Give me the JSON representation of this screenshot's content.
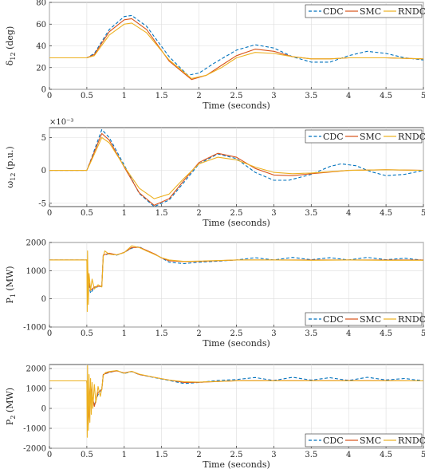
{
  "palette": {
    "CDC": "#0072bd",
    "SMC": "#d95319",
    "RNDC": "#edb120"
  },
  "chart_data": [
    {
      "id": "delta",
      "type": "line",
      "title": "",
      "xlabel": "Time (seconds)",
      "ylabel": "δ",
      "ylabel_sub": "12",
      "ylabel_unit": " (deg)",
      "xlim": [
        0,
        5
      ],
      "ylim": [
        0,
        80
      ],
      "xticks": [
        "0",
        "0.5",
        "1",
        "1.5",
        "2",
        "2.5",
        "3",
        "3.5",
        "4",
        "4.5",
        "5"
      ],
      "yticks": [
        "0",
        "20",
        "40",
        "60",
        "80"
      ],
      "exponent": "",
      "legend_position": "top-right",
      "legend": [
        "CDC",
        "SMC",
        "RNDC"
      ],
      "series": [
        {
          "name": "CDC",
          "x": [
            0,
            0.5,
            0.6,
            0.8,
            1.0,
            1.1,
            1.3,
            1.6,
            1.85,
            2.0,
            2.2,
            2.5,
            2.75,
            3.0,
            3.25,
            3.5,
            3.75,
            4.0,
            4.25,
            4.5,
            4.75,
            5.0
          ],
          "y": [
            29,
            29,
            33,
            55,
            67,
            68,
            58,
            30,
            13,
            15,
            24,
            36,
            41,
            38,
            30,
            25,
            25,
            31,
            35,
            33,
            29,
            27
          ]
        },
        {
          "name": "SMC",
          "x": [
            0,
            0.5,
            0.6,
            0.8,
            1.0,
            1.1,
            1.3,
            1.6,
            1.9,
            2.1,
            2.3,
            2.5,
            2.75,
            3.0,
            3.25,
            3.5,
            3.75,
            4.0,
            4.5,
            5.0
          ],
          "y": [
            29,
            29,
            32,
            53,
            64,
            65,
            55,
            26,
            9,
            13,
            22,
            31,
            37,
            35,
            30,
            28,
            28,
            29,
            29,
            28
          ]
        },
        {
          "name": "RNDC",
          "x": [
            0,
            0.5,
            0.6,
            0.8,
            1.0,
            1.1,
            1.3,
            1.6,
            1.9,
            2.1,
            2.3,
            2.5,
            2.75,
            3.0,
            3.25,
            3.5,
            3.75,
            4.0,
            4.5,
            5.0
          ],
          "y": [
            29,
            29,
            31,
            50,
            60,
            61,
            52,
            27,
            10,
            13,
            20,
            29,
            34,
            33,
            30,
            28,
            28,
            29,
            29,
            28
          ]
        }
      ]
    },
    {
      "id": "omega",
      "type": "line",
      "title": "",
      "xlabel": "Time (seconds)",
      "ylabel": "ω",
      "ylabel_sub": "12",
      "ylabel_unit": " (p.u.)",
      "xlim": [
        0,
        5
      ],
      "ylim": [
        -5.5,
        6.5
      ],
      "xticks": [
        "0",
        "0.5",
        "1",
        "1.5",
        "2",
        "2.5",
        "3",
        "3.5",
        "4",
        "4.5",
        "5"
      ],
      "yticks": [
        "-5",
        "0",
        "5"
      ],
      "ytick_values": [
        -5,
        0,
        5
      ],
      "exponent": "×10⁻³",
      "legend_position": "top-right",
      "legend": [
        "CDC",
        "SMC",
        "RNDC"
      ],
      "series": [
        {
          "name": "CDC",
          "x": [
            0,
            0.5,
            0.55,
            0.7,
            0.8,
            1.0,
            1.2,
            1.4,
            1.6,
            1.8,
            2.0,
            2.25,
            2.5,
            2.75,
            3.0,
            3.2,
            3.5,
            3.75,
            3.9,
            4.1,
            4.3,
            4.5,
            4.75,
            5.0
          ],
          "y": [
            0,
            0,
            1.5,
            6.2,
            5.0,
            0.8,
            -3.5,
            -5.5,
            -4.5,
            -1.8,
            1.0,
            2.5,
            1.8,
            -0.3,
            -1.5,
            -1.5,
            -0.6,
            0.6,
            1.0,
            0.7,
            -0.2,
            -0.8,
            -0.6,
            0
          ]
        },
        {
          "name": "SMC",
          "x": [
            0,
            0.5,
            0.55,
            0.7,
            0.8,
            1.0,
            1.2,
            1.4,
            1.6,
            1.8,
            2.0,
            2.25,
            2.5,
            2.75,
            3.0,
            3.25,
            3.5,
            4.0,
            4.5,
            5.0
          ],
          "y": [
            0,
            0,
            1.4,
            5.6,
            4.6,
            0.5,
            -3.4,
            -5.3,
            -4.3,
            -1.5,
            1.2,
            2.6,
            2.0,
            0.3,
            -0.7,
            -0.8,
            -0.5,
            0,
            0.1,
            0
          ]
        },
        {
          "name": "RNDC",
          "x": [
            0,
            0.5,
            0.55,
            0.7,
            0.8,
            1.0,
            1.2,
            1.4,
            1.6,
            1.8,
            2.0,
            2.25,
            2.5,
            2.75,
            3.0,
            3.25,
            3.5,
            4.0,
            4.5,
            5.0
          ],
          "y": [
            0,
            0,
            1.2,
            5.0,
            4.2,
            0.6,
            -2.7,
            -4.3,
            -3.6,
            -1.2,
            1.0,
            2.0,
            1.6,
            0.5,
            -0.3,
            -0.5,
            -0.4,
            0,
            0.1,
            0
          ]
        }
      ]
    },
    {
      "id": "p1",
      "type": "line",
      "title": "",
      "xlabel": "Time (seconds)",
      "ylabel": "P",
      "ylabel_sub": "1",
      "ylabel_unit": " (MW)",
      "xlim": [
        0,
        5
      ],
      "ylim": [
        -1000,
        2000
      ],
      "xticks": [
        "0",
        "0.5",
        "1",
        "1.5",
        "2",
        "2.5",
        "3",
        "3.5",
        "4",
        "4.5",
        "5"
      ],
      "yticks": [
        "-1000",
        "0",
        "1000",
        "2000"
      ],
      "ytick_values": [
        -1000,
        0,
        1000,
        2000
      ],
      "exponent": "",
      "legend_position": "bottom-right",
      "legend": [
        "CDC",
        "SMC",
        "RNDC"
      ],
      "series": [
        {
          "name": "CDC",
          "x": [
            0,
            0.5,
            0.52,
            0.55,
            0.6,
            0.7,
            0.72,
            0.8,
            0.9,
            1.0,
            1.1,
            1.2,
            1.3,
            1.4,
            1.5,
            1.6,
            1.8,
            2.0,
            2.2,
            2.5,
            2.75,
            3.0,
            3.25,
            3.5,
            3.75,
            4.0,
            4.25,
            4.5,
            4.75,
            5.0
          ],
          "y": [
            1380,
            1380,
            600,
            200,
            400,
            450,
            1550,
            1600,
            1550,
            1650,
            1800,
            1850,
            1700,
            1600,
            1450,
            1300,
            1250,
            1300,
            1330,
            1380,
            1460,
            1380,
            1470,
            1390,
            1460,
            1380,
            1470,
            1390,
            1440,
            1370
          ]
        },
        {
          "name": "SMC",
          "x": [
            0,
            0.5,
            0.52,
            0.55,
            0.6,
            0.7,
            0.72,
            0.8,
            0.9,
            1.0,
            1.1,
            1.2,
            1.3,
            1.4,
            1.5,
            1.6,
            1.8,
            2.0,
            2.5,
            3.0,
            3.5,
            4.0,
            4.5,
            5.0
          ],
          "y": [
            1380,
            1380,
            700,
            300,
            420,
            460,
            1550,
            1620,
            1560,
            1650,
            1820,
            1830,
            1720,
            1600,
            1450,
            1350,
            1320,
            1330,
            1380,
            1380,
            1380,
            1380,
            1380,
            1380
          ]
        },
        {
          "name": "RNDC",
          "x": [
            0,
            0.5,
            0.505,
            0.51,
            0.52,
            0.53,
            0.55,
            0.57,
            0.6,
            0.65,
            0.7,
            0.72,
            0.74,
            0.8,
            0.9,
            1.0,
            1.1,
            1.2,
            1.3,
            1.4,
            1.5,
            1.6,
            1.8,
            2.0,
            2.5,
            3.0,
            3.5,
            4.0,
            4.5,
            5.0
          ],
          "y": [
            1380,
            1380,
            -450,
            1700,
            -200,
            900,
            300,
            700,
            350,
            500,
            420,
            1500,
            1700,
            1580,
            1560,
            1640,
            1880,
            1820,
            1700,
            1580,
            1460,
            1380,
            1330,
            1340,
            1380,
            1380,
            1370,
            1380,
            1370,
            1370
          ]
        }
      ]
    },
    {
      "id": "p2",
      "type": "line",
      "title": "",
      "xlabel": "Time (seconds)",
      "ylabel": "P",
      "ylabel_sub": "2",
      "ylabel_unit": " (MW)",
      "xlim": [
        0,
        5
      ],
      "ylim": [
        -2000,
        2200
      ],
      "xticks": [
        "0",
        "0.5",
        "1",
        "1.5",
        "2",
        "2.5",
        "3",
        "3.5",
        "4",
        "4.5",
        "5"
      ],
      "yticks": [
        "-2000",
        "-1000",
        "0",
        "1000",
        "2000"
      ],
      "ytick_values": [
        -2000,
        -1000,
        0,
        1000,
        2000
      ],
      "exponent": "",
      "legend_position": "bottom-right",
      "legend": [
        "CDC",
        "SMC",
        "RNDC"
      ],
      "series": [
        {
          "name": "CDC",
          "x": [
            0,
            0.5,
            0.52,
            0.55,
            0.6,
            0.65,
            0.7,
            0.72,
            0.8,
            0.9,
            1.0,
            1.1,
            1.2,
            1.4,
            1.6,
            1.8,
            2.0,
            2.25,
            2.5,
            2.75,
            3.0,
            3.25,
            3.5,
            3.75,
            4.0,
            4.25,
            4.5,
            4.75,
            5.0
          ],
          "y": [
            1380,
            1380,
            -600,
            900,
            200,
            700,
            1000,
            1700,
            1800,
            1900,
            1750,
            1850,
            1700,
            1550,
            1400,
            1250,
            1300,
            1400,
            1450,
            1550,
            1400,
            1560,
            1420,
            1540,
            1400,
            1560,
            1430,
            1500,
            1380
          ]
        },
        {
          "name": "SMC",
          "x": [
            0,
            0.5,
            0.52,
            0.55,
            0.6,
            0.65,
            0.7,
            0.72,
            0.8,
            0.9,
            1.0,
            1.1,
            1.2,
            1.4,
            1.6,
            1.8,
            2.0,
            2.5,
            3.0,
            3.5,
            4.0,
            4.5,
            5.0
          ],
          "y": [
            1380,
            1380,
            -800,
            1100,
            100,
            800,
            950,
            1700,
            1820,
            1880,
            1780,
            1860,
            1700,
            1560,
            1420,
            1300,
            1310,
            1390,
            1390,
            1390,
            1390,
            1390,
            1380
          ]
        },
        {
          "name": "RNDC",
          "x": [
            0,
            0.5,
            0.505,
            0.51,
            0.52,
            0.53,
            0.54,
            0.55,
            0.56,
            0.57,
            0.58,
            0.6,
            0.62,
            0.65,
            0.68,
            0.7,
            0.72,
            0.75,
            0.8,
            0.9,
            1.0,
            1.1,
            1.2,
            1.4,
            1.6,
            1.8,
            2.0,
            2.5,
            3.0,
            3.5,
            4.0,
            4.5,
            5.0
          ],
          "y": [
            1380,
            1380,
            -1450,
            2150,
            -1100,
            1700,
            -700,
            1500,
            -300,
            1300,
            0,
            1200,
            300,
            1100,
            600,
            1000,
            1650,
            1800,
            1850,
            1900,
            1760,
            1860,
            1720,
            1560,
            1420,
            1340,
            1320,
            1380,
            1380,
            1380,
            1380,
            1380,
            1380
          ]
        }
      ]
    }
  ]
}
